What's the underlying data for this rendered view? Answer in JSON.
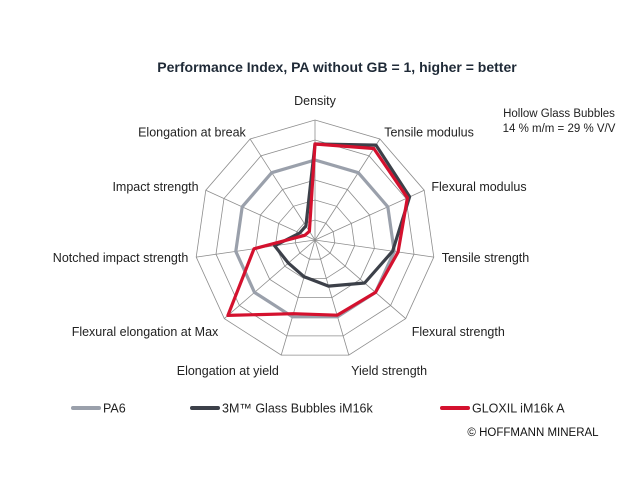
{
  "chart_data": {
    "type": "radar",
    "title": "Performance Index, PA without GB = 1, higher = better",
    "note_lines": [
      "Hollow Glass Bubbles",
      "14 % m/m = 29 % V/V"
    ],
    "copyright": "© HOFFMANN MINERAL",
    "rmax": 1.5,
    "grid_levels": [
      0.25,
      0.5,
      0.75,
      1.0,
      1.25,
      1.5
    ],
    "axes": [
      "Density",
      "Tensile modulus",
      "Flexural modulus",
      "Tensile strength",
      "Flexural strength",
      "Yield strength",
      "Elongation at yield",
      "Flexural elongation at Max",
      "Notched impact strength",
      "Impact strength",
      "Elongation at break"
    ],
    "series": [
      {
        "name": "PA6",
        "color": "#9aa0ab",
        "values": [
          1.0,
          1.0,
          1.0,
          1.0,
          1.0,
          1.0,
          1.0,
          1.0,
          1.0,
          1.0,
          1.0
        ]
      },
      {
        "name": "3M™ Glass Bubbles iM16k",
        "color": "#3c4049",
        "values": [
          1.2,
          1.41,
          1.3,
          0.98,
          0.82,
          0.6,
          0.48,
          0.44,
          0.51,
          0.21,
          0.21
        ]
      },
      {
        "name": "GLOXIL iM16k A",
        "color": "#d4112e",
        "values": [
          1.2,
          1.36,
          1.27,
          1.05,
          1.0,
          0.98,
          0.96,
          1.44,
          0.77,
          0.14,
          0.13
        ]
      }
    ]
  }
}
